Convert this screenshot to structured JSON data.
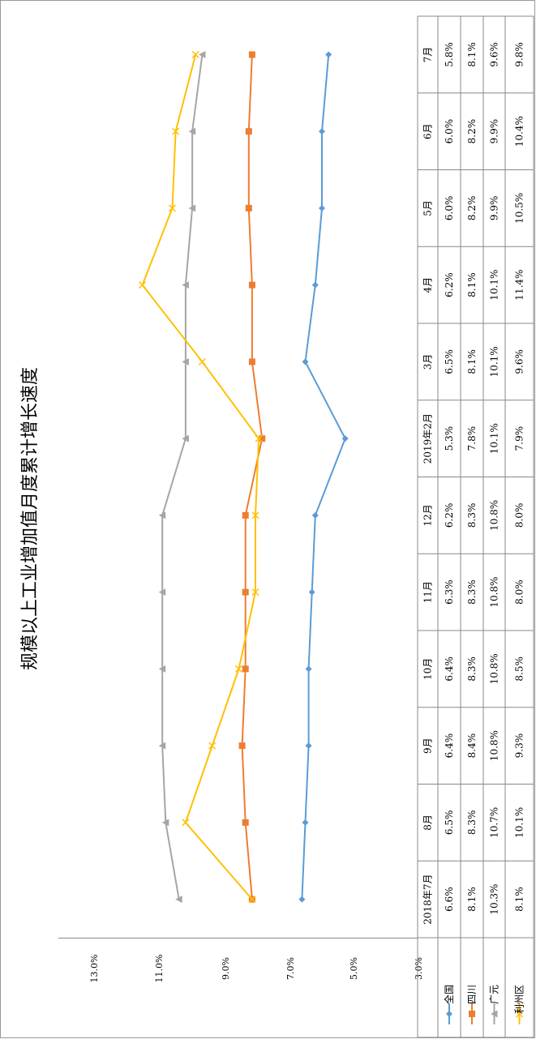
{
  "chart_data": {
    "type": "line",
    "title": "规模以上工业增加值月度累计增长速度",
    "categories": [
      "2018年7月",
      "8月",
      "9月",
      "10月",
      "11月",
      "12月",
      "2019年2月",
      "3月",
      "4月",
      "5月",
      "6月",
      "7月"
    ],
    "y_ticks": [
      "13.0%",
      "11.0%",
      "9.0%",
      "7.0%",
      "5.0%",
      "3.0%"
    ],
    "ylim": [
      3.0,
      13.0
    ],
    "grid": false,
    "legend": "data-table",
    "series": [
      {
        "name": "全国",
        "color": "#5B9BD5",
        "marker": "diamond",
        "values": [
          6.6,
          6.5,
          6.4,
          6.4,
          6.3,
          6.2,
          5.3,
          6.5,
          6.2,
          6.0,
          6.0,
          5.8
        ],
        "labels": [
          "6.6%",
          "6.5%",
          "6.4%",
          "6.4%",
          "6.3%",
          "6.2%",
          "5.3%",
          "6.5%",
          "6.2%",
          "6.0%",
          "6.0%",
          "5.8%"
        ]
      },
      {
        "name": "四川",
        "color": "#ED7D31",
        "marker": "square",
        "values": [
          8.1,
          8.3,
          8.4,
          8.3,
          8.3,
          8.3,
          7.8,
          8.1,
          8.1,
          8.2,
          8.2,
          8.1
        ],
        "labels": [
          "8.1%",
          "8.3%",
          "8.4%",
          "8.3%",
          "8.3%",
          "8.3%",
          "7.8%",
          "8.1%",
          "8.1%",
          "8.2%",
          "8.2%",
          "8.1%"
        ]
      },
      {
        "name": "广元",
        "color": "#A5A5A5",
        "marker": "triangle",
        "values": [
          10.3,
          10.7,
          10.8,
          10.8,
          10.8,
          10.8,
          10.1,
          10.1,
          10.1,
          9.9,
          9.9,
          9.6
        ],
        "labels": [
          "10.3%",
          "10.7%",
          "10.8%",
          "10.8%",
          "10.8%",
          "10.8%",
          "10.1%",
          "10.1%",
          "10.1%",
          "9.9%",
          "9.9%",
          "9.6%"
        ]
      },
      {
        "name": "利州区",
        "color": "#FFC000",
        "marker": "x",
        "values": [
          8.1,
          10.1,
          9.3,
          8.5,
          8.0,
          8.0,
          7.9,
          9.6,
          11.4,
          10.5,
          10.4,
          9.8
        ],
        "labels": [
          "8.1%",
          "10.1%",
          "9.3%",
          "8.5%",
          "8.0%",
          "8.0%",
          "7.9%",
          "9.6%",
          "11.4%",
          "10.5%",
          "10.4%",
          "9.8%"
        ]
      }
    ]
  }
}
